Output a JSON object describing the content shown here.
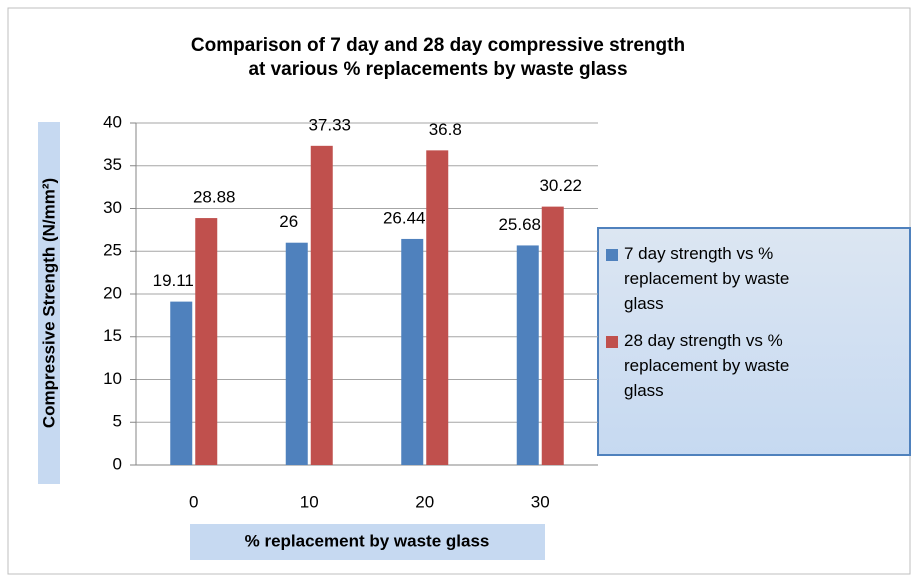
{
  "chart_data": {
    "type": "bar",
    "title": [
      "Comparison of 7 day and 28 day compressive strength",
      "at various % replacements by waste glass"
    ],
    "x_label": "% replacement by waste glass",
    "y_label": "Compressive Strength (N/mm²)",
    "categories": [
      "0",
      "10",
      "20",
      "30"
    ],
    "series": [
      {
        "name": "7 day strength vs % replacement by waste glass",
        "color": "#4f81bd",
        "values": [
          19.11,
          26,
          26.44,
          25.68
        ]
      },
      {
        "name": "28 day strength vs % replacement by waste glass",
        "color": "#c0504d",
        "values": [
          28.88,
          37.33,
          36.8,
          30.22
        ]
      }
    ],
    "ylim": [
      0,
      40
    ],
    "yticks": [
      0,
      5,
      10,
      15,
      20,
      25,
      30,
      35,
      40
    ],
    "grid": true,
    "legend": "right"
  }
}
